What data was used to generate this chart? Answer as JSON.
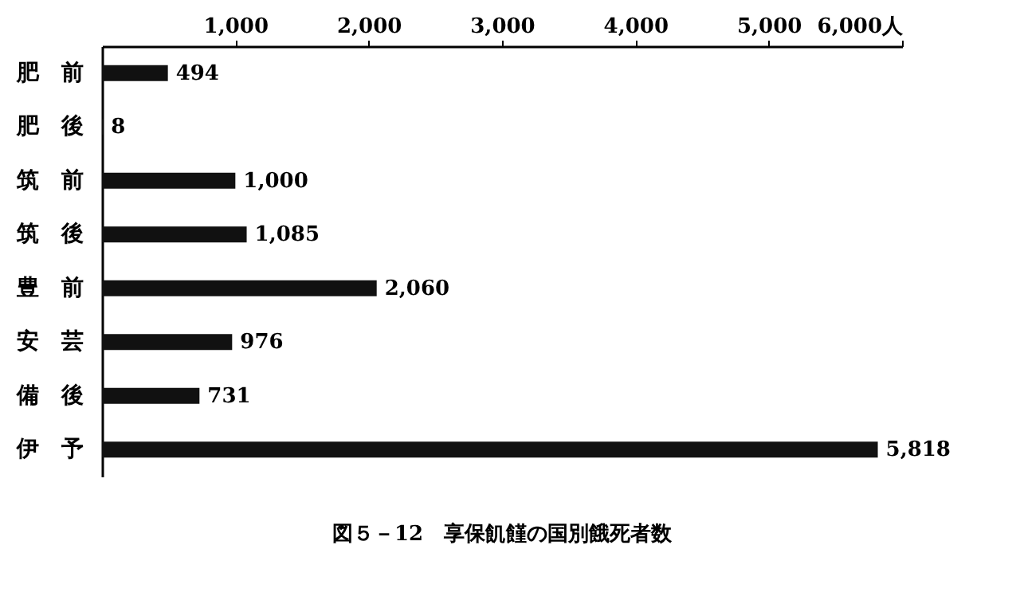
{
  "chart_data": {
    "type": "bar",
    "orientation": "horizontal",
    "title": "図５－12　享保飢饉の国別餓死者数",
    "categories": [
      "肥　前",
      "肥　後",
      "筑　前",
      "筑　後",
      "豊　前",
      "安　芸",
      "備　後",
      "伊　予"
    ],
    "values": [
      494,
      8,
      1000,
      1085,
      2060,
      976,
      731,
      5818
    ],
    "value_labels": [
      "494",
      "8",
      "1,000",
      "1,085",
      "2,060",
      "976",
      "731",
      "5,818"
    ],
    "color": "#111111",
    "xlim": [
      0,
      6000
    ],
    "xticks": [
      {
        "value": 1000,
        "label": "1,000"
      },
      {
        "value": 2000,
        "label": "2,000"
      },
      {
        "value": 3000,
        "label": "3,000"
      },
      {
        "value": 4000,
        "label": "4,000"
      },
      {
        "value": 5000,
        "label": "5,000"
      },
      {
        "value": 6000,
        "label": "6,000人"
      }
    ],
    "grid": false
  }
}
